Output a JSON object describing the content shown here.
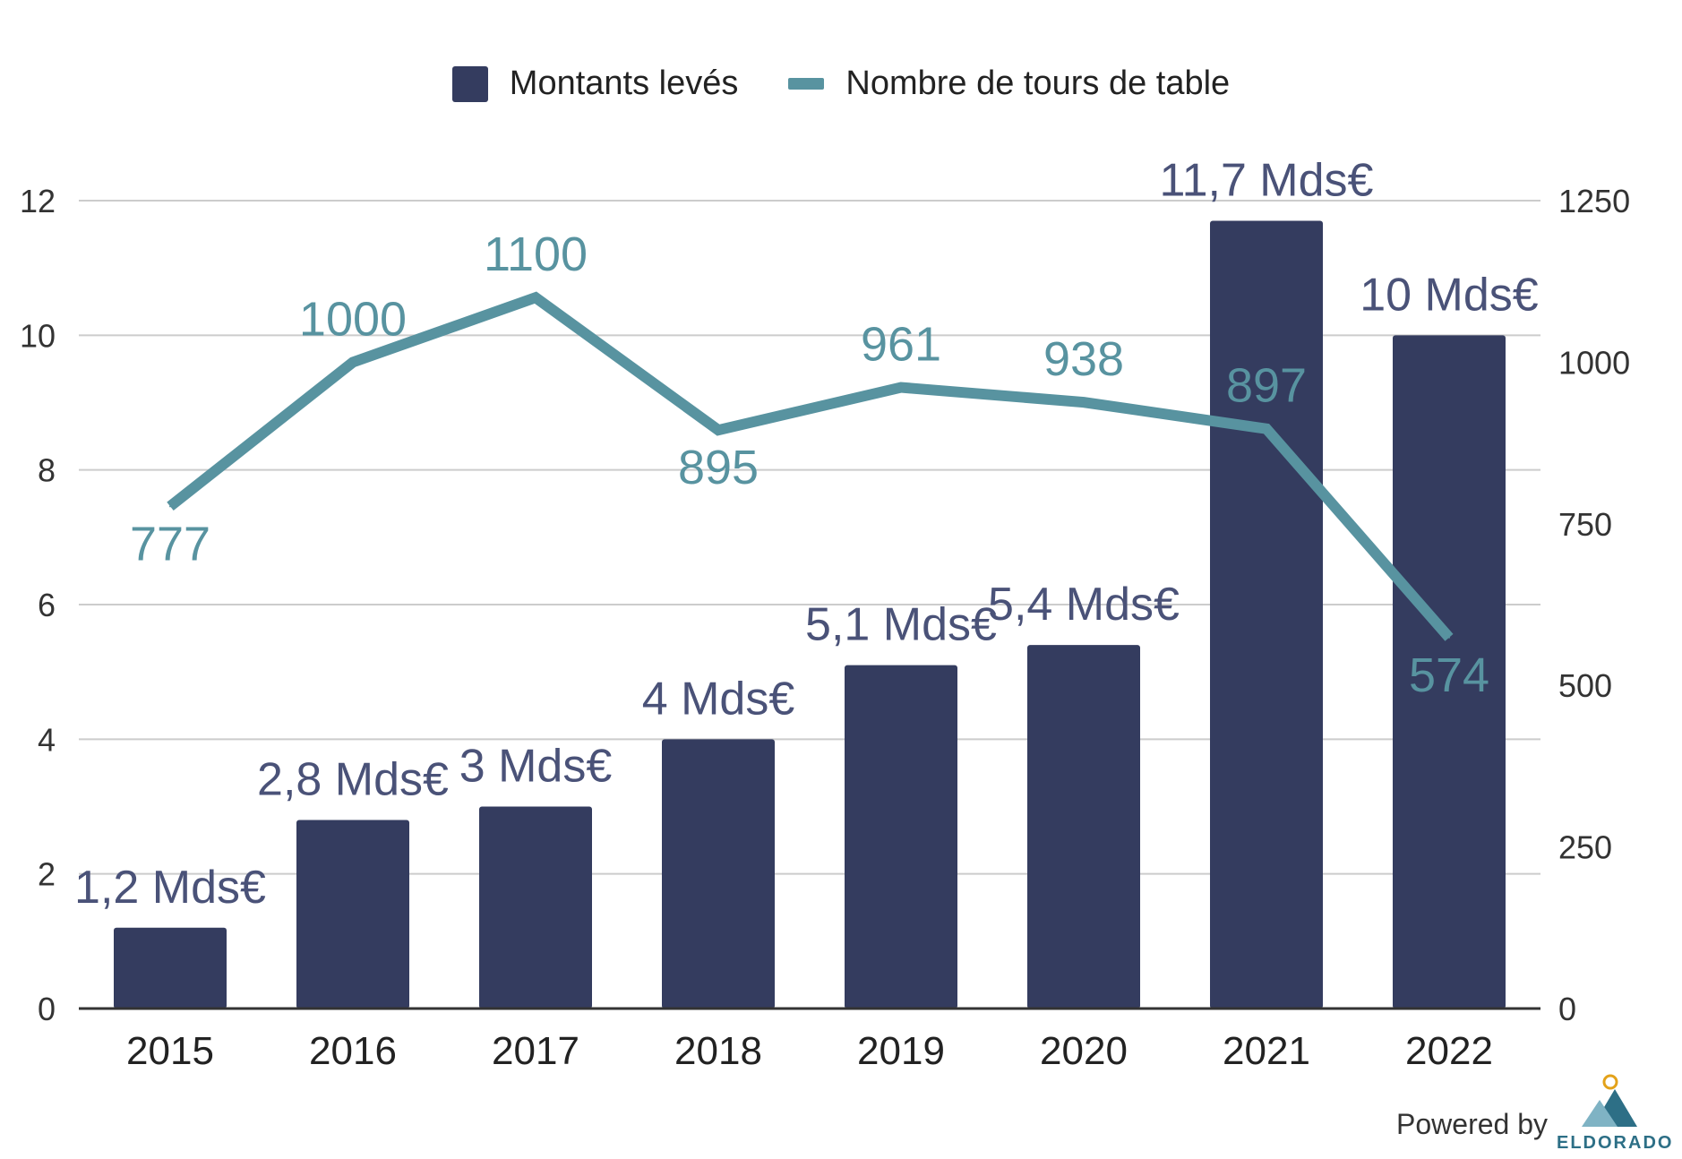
{
  "legend": {
    "bar_label": "Montants levés",
    "line_label": "Nombre de tours de table"
  },
  "footer": {
    "powered_by": "Powered by",
    "logo_text": "ELDORADO"
  },
  "colors": {
    "bar": "#343c5f",
    "line": "#5893a0",
    "bar_label": "#4a5278",
    "line_label": "#5893a0",
    "grid": "#cccccc",
    "axis": "#333333"
  },
  "chart_data": {
    "type": "bar",
    "categories": [
      "2015",
      "2016",
      "2017",
      "2018",
      "2019",
      "2020",
      "2021",
      "2022"
    ],
    "series": [
      {
        "name": "Montants levés",
        "type": "bar",
        "axis": "left",
        "values": [
          1.2,
          2.8,
          3.0,
          4.0,
          5.1,
          5.4,
          11.7,
          10.0
        ],
        "labels": [
          "1,2 Mds€",
          "2,8 Mds€",
          "3 Mds€",
          "4 Mds€",
          "5,1 Mds€",
          "5,4 Mds€",
          "11,7 Mds€",
          "10 Mds€"
        ]
      },
      {
        "name": "Nombre de tours de table",
        "type": "line",
        "axis": "right",
        "values": [
          777,
          1000,
          1100,
          895,
          961,
          938,
          897,
          574
        ],
        "labels": [
          "777",
          "1000",
          "1100",
          "895",
          "961",
          "938",
          "897",
          "574"
        ]
      }
    ],
    "y_left": {
      "min": 0,
      "max": 12,
      "ticks": [
        0,
        2,
        4,
        6,
        8,
        10,
        12
      ]
    },
    "y_right": {
      "min": 0,
      "max": 1250,
      "ticks": [
        0,
        250,
        500,
        750,
        1000,
        1250
      ]
    },
    "grid": true,
    "legend_position": "top-center"
  }
}
